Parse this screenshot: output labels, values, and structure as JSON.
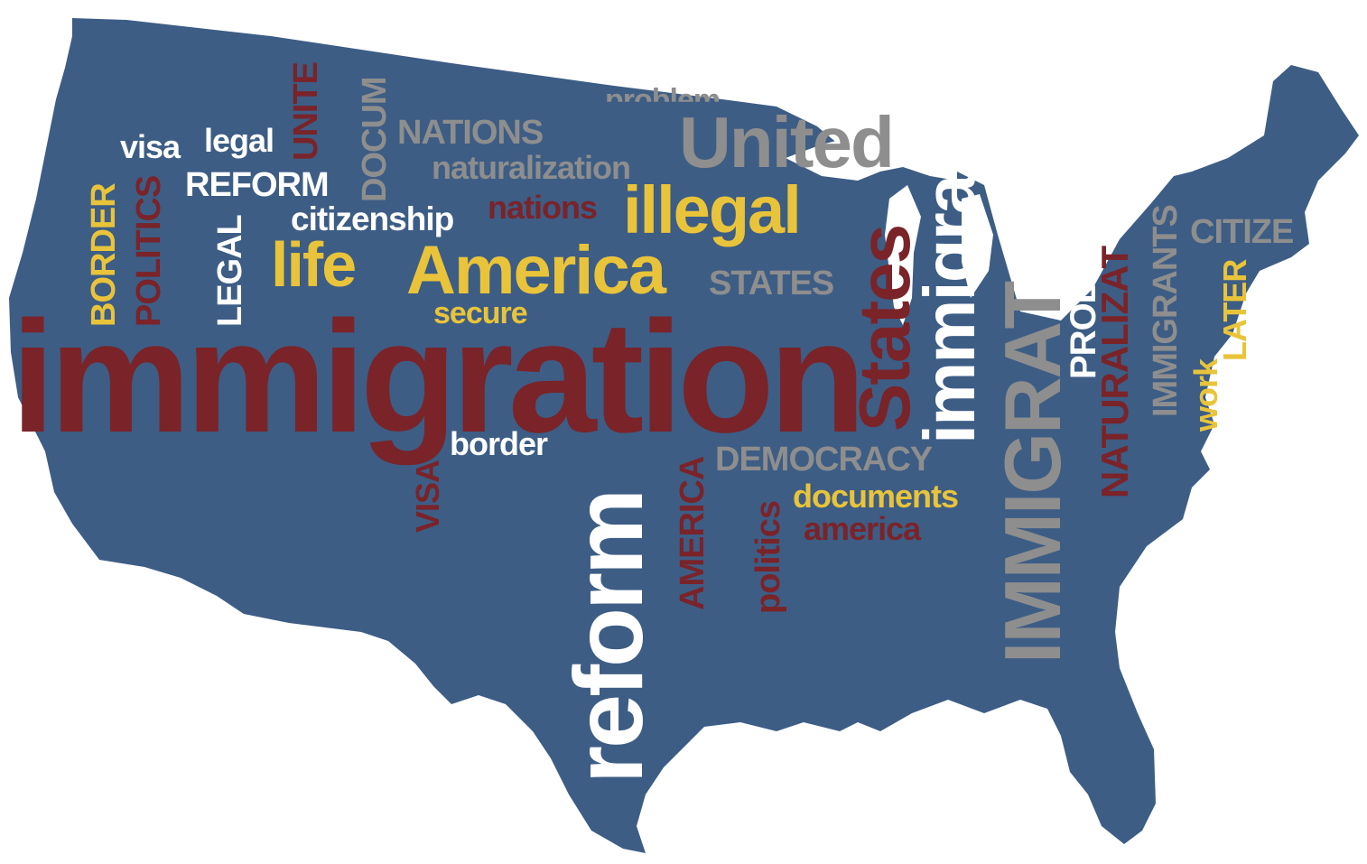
{
  "colors": {
    "map_fill": "#3d5d85",
    "background": "#ffffff",
    "maroon": "#7a2329",
    "yellow": "#e9c43a",
    "white": "#ffffff",
    "gray": "#8e8e8e"
  },
  "words": {
    "immigration": "immigration",
    "reform": "reform",
    "america_cap": "America",
    "illegal": "illegal",
    "life": "life",
    "united_top": "United",
    "states_side": "States",
    "immigra_side": "immigra",
    "immigrat_cap": "IMMIGRAT",
    "naturalizat": "NATURALIZAT",
    "immigrants": "IMMIGRANTS",
    "probl": "PROBL",
    "citize": "CITIZE",
    "border_v": "BORDER",
    "politics_v": "POLITICS",
    "legal_v": "LEGAL",
    "visa": "visa",
    "legal": "legal",
    "reform_cap": "REFORM",
    "citizenship": "citizenship",
    "nations": "nations",
    "nations_cap": "NATIONS",
    "naturalization": "naturalization",
    "problem": "problem",
    "documents_v": "DOCUM",
    "united_v": "UNITE",
    "states_cap": "STATES",
    "secure": "secure",
    "border": "border",
    "visa_v": "VISA",
    "democracy": "DEMOCRACY",
    "documents": "documents",
    "america_low": "america",
    "america_v": "AMERICA",
    "politics_low": "politics",
    "work": "work",
    "later": "LATER",
    "work_cap": "WORK"
  }
}
